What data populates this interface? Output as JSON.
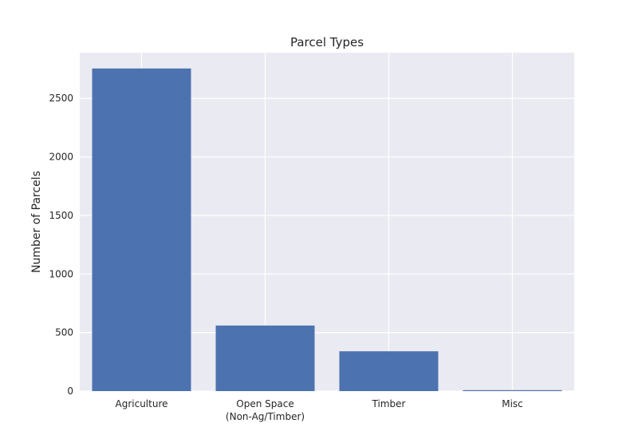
{
  "chart_data": {
    "type": "bar",
    "title": "Parcel Types",
    "xlabel": "",
    "ylabel": "Number of Parcels",
    "categories": [
      [
        "Agriculture"
      ],
      [
        "Open Space",
        "(Non-Ag/Timber)"
      ],
      [
        "Timber"
      ],
      [
        "Misc"
      ]
    ],
    "values": [
      2755,
      560,
      340,
      8
    ],
    "ylim": [
      0,
      2890
    ],
    "yticks": [
      0,
      500,
      1000,
      1500,
      2000,
      2500
    ],
    "grid": true,
    "colors": {
      "bar": "#4c72b0",
      "background": "#eaeaf2",
      "grid": "#ffffff",
      "text": "#262626"
    }
  }
}
